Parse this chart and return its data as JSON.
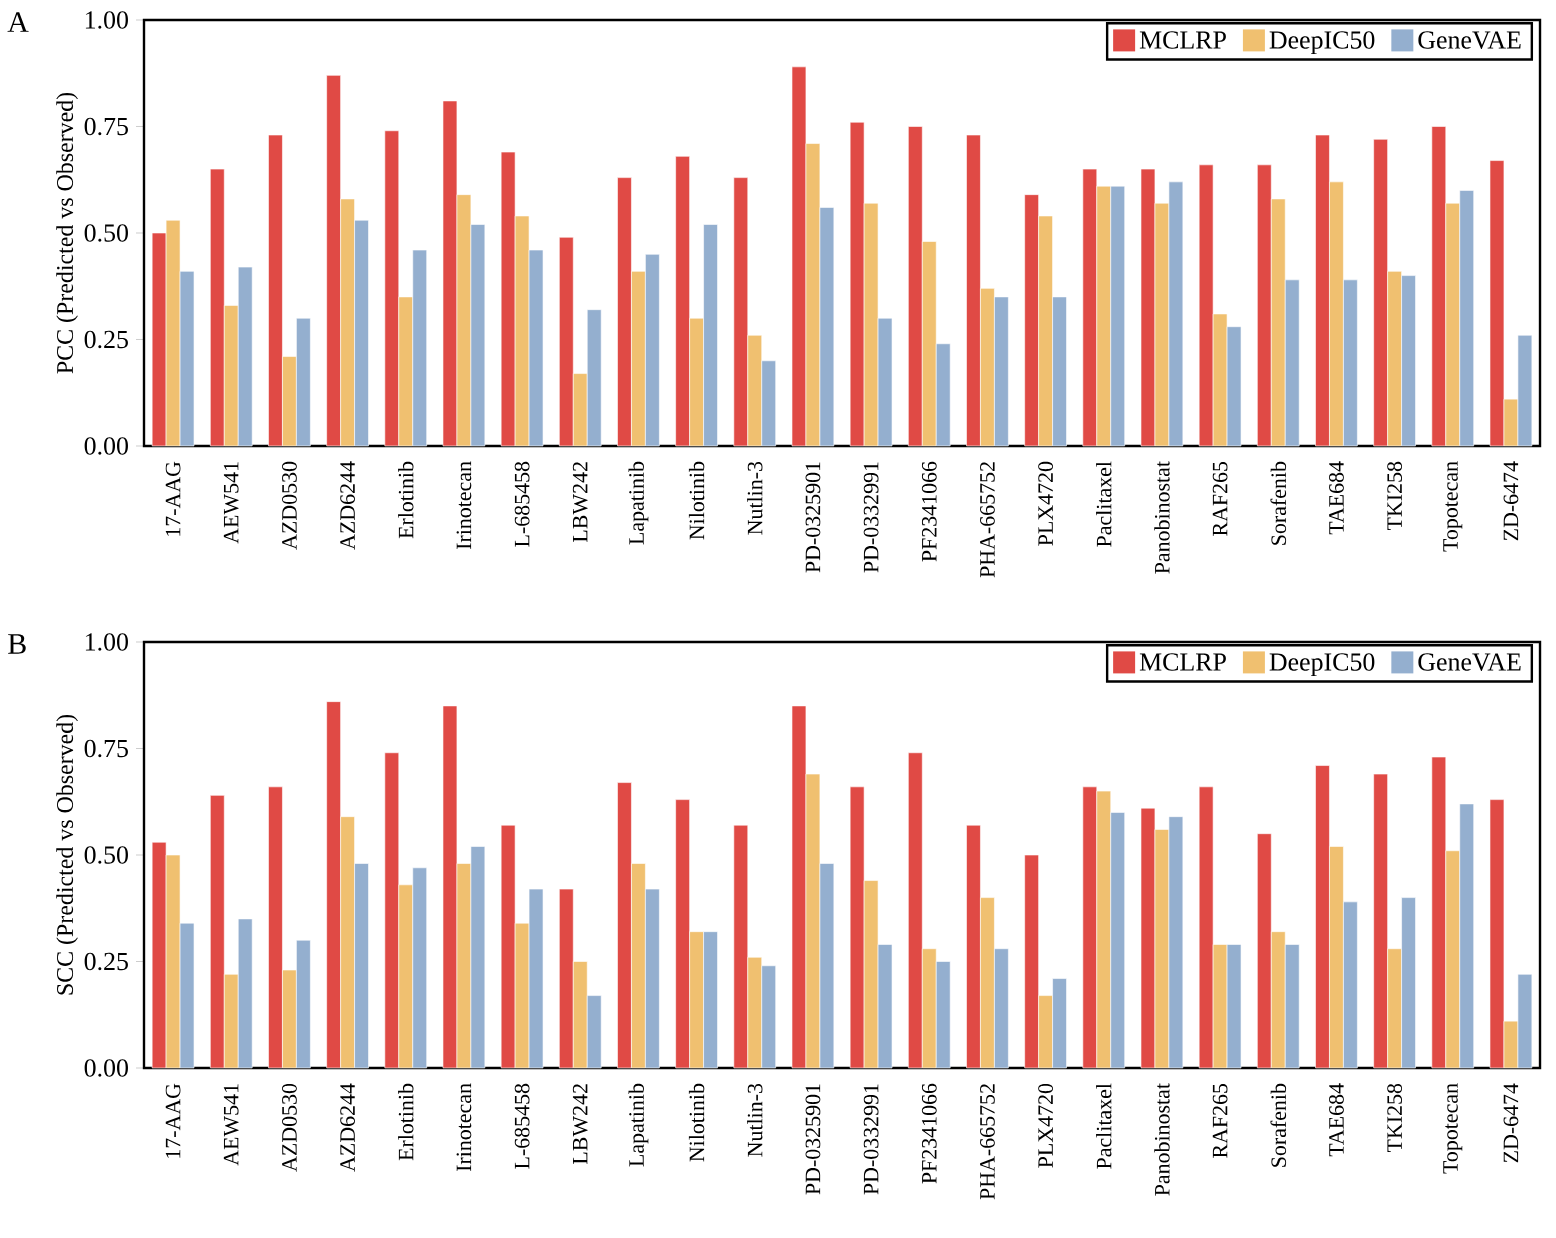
{
  "chart_data": [
    {
      "type": "bar",
      "ylabel": "PCC (Predicted vs Observed)",
      "annotations": [
        "A"
      ],
      "legend": "top right",
      "categories": [
        "17-AAG",
        "AEW541",
        "AZD0530",
        "AZD6244",
        "Erlotinib",
        "Irinotecan",
        "L-685458",
        "LBW242",
        "Lapatinib",
        "Nilotinib",
        "Nutlin-3",
        "PD-0325901",
        "PD-0332991",
        "PF2341066",
        "PHA-665752",
        "PLX4720",
        "Paclitaxel",
        "Panobinostat",
        "RAF265",
        "Sorafenib",
        "TAE684",
        "TKI258",
        "Topotecan",
        "ZD-6474"
      ],
      "ylim": [
        0,
        1
      ],
      "yticks": [
        {
          "value": 0,
          "label": "0.00"
        },
        {
          "value": 0.25,
          "label": "0.25"
        },
        {
          "value": 0.5,
          "label": "0.50"
        },
        {
          "value": 0.75,
          "label": "0.75"
        },
        {
          "value": 1,
          "label": "1.00"
        }
      ],
      "series": [
        {
          "name": "MCLRP",
          "color": "#e04a45",
          "values": [
            0.5,
            0.65,
            0.73,
            0.87,
            0.74,
            0.81,
            0.69,
            0.49,
            0.63,
            0.68,
            0.63,
            0.89,
            0.76,
            0.75,
            0.73,
            0.59,
            0.65,
            0.65,
            0.66,
            0.66,
            0.73,
            0.72,
            0.75,
            0.67
          ]
        },
        {
          "name": "DeepIC50",
          "color": "#f0c070",
          "values": [
            0.53,
            0.33,
            0.21,
            0.58,
            0.35,
            0.59,
            0.54,
            0.17,
            0.41,
            0.3,
            0.26,
            0.71,
            0.57,
            0.48,
            0.37,
            0.54,
            0.61,
            0.57,
            0.31,
            0.58,
            0.62,
            0.41,
            0.57,
            0.11
          ]
        },
        {
          "name": "GeneVAE",
          "color": "#94afcf",
          "values": [
            0.41,
            0.42,
            0.3,
            0.53,
            0.46,
            0.52,
            0.46,
            0.32,
            0.45,
            0.52,
            0.2,
            0.56,
            0.3,
            0.24,
            0.35,
            0.35,
            0.61,
            0.62,
            0.28,
            0.39,
            0.39,
            0.4,
            0.6,
            0.26
          ]
        }
      ]
    },
    {
      "type": "bar",
      "ylabel": "SCC (Predicted vs Observed)",
      "annotations": [
        "B"
      ],
      "legend": "top right",
      "categories": [
        "17-AAG",
        "AEW541",
        "AZD0530",
        "AZD6244",
        "Erlotinib",
        "Irinotecan",
        "L-685458",
        "LBW242",
        "Lapatinib",
        "Nilotinib",
        "Nutlin-3",
        "PD-0325901",
        "PD-0332991",
        "PF2341066",
        "PHA-665752",
        "PLX4720",
        "Paclitaxel",
        "Panobinostat",
        "RAF265",
        "Sorafenib",
        "TAE684",
        "TKI258",
        "Topotecan",
        "ZD-6474"
      ],
      "ylim": [
        0,
        1
      ],
      "yticks": [
        {
          "value": 0,
          "label": "0.00"
        },
        {
          "value": 0.25,
          "label": "0.25"
        },
        {
          "value": 0.5,
          "label": "0.50"
        },
        {
          "value": 0.75,
          "label": "0.75"
        },
        {
          "value": 1,
          "label": "1.00"
        }
      ],
      "series": [
        {
          "name": "MCLRP",
          "color": "#e04a45",
          "values": [
            0.53,
            0.64,
            0.66,
            0.86,
            0.74,
            0.85,
            0.57,
            0.42,
            0.67,
            0.63,
            0.57,
            0.85,
            0.66,
            0.74,
            0.57,
            0.5,
            0.66,
            0.61,
            0.66,
            0.55,
            0.71,
            0.69,
            0.73,
            0.63
          ]
        },
        {
          "name": "DeepIC50",
          "color": "#f0c070",
          "values": [
            0.5,
            0.22,
            0.23,
            0.59,
            0.43,
            0.48,
            0.34,
            0.25,
            0.48,
            0.32,
            0.26,
            0.69,
            0.44,
            0.28,
            0.4,
            0.17,
            0.65,
            0.56,
            0.29,
            0.32,
            0.52,
            0.28,
            0.51,
            0.11
          ]
        },
        {
          "name": "GeneVAE",
          "color": "#94afcf",
          "values": [
            0.34,
            0.35,
            0.3,
            0.48,
            0.47,
            0.52,
            0.42,
            0.17,
            0.42,
            0.32,
            0.24,
            0.48,
            0.29,
            0.25,
            0.28,
            0.21,
            0.6,
            0.59,
            0.29,
            0.29,
            0.39,
            0.4,
            0.62,
            0.22
          ]
        }
      ]
    }
  ]
}
